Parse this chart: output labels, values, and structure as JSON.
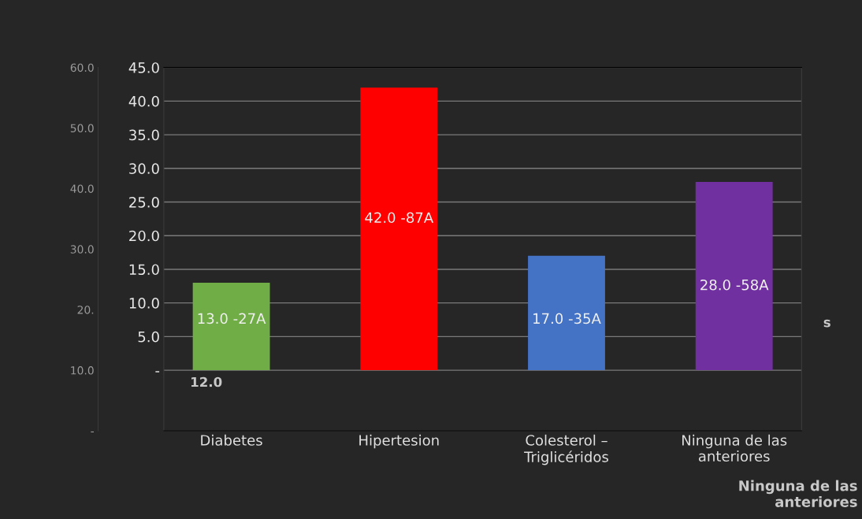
{
  "chart_data": {
    "type": "bar",
    "categories": [
      "Diabetes",
      "Hipertesion",
      "Colesterol –\nTriglicéridos",
      "Ninguna de las\nanteriores"
    ],
    "values": [
      13.0,
      42.0,
      17.0,
      28.0
    ],
    "colors": [
      "#70ad47",
      "#ff0000",
      "#4472c4",
      "#7030a0"
    ],
    "value_labels": [
      "13.0 -27A",
      "42.0 -87A",
      "17.0 -35A",
      "28.0 -58A"
    ],
    "ylim": [
      -9,
      45
    ],
    "yticks": [
      {
        "value": 0,
        "label": "-"
      },
      {
        "value": 5,
        "label": "5.0"
      },
      {
        "value": 10,
        "label": "10.0"
      },
      {
        "value": 15,
        "label": "15.0"
      },
      {
        "value": 20,
        "label": "20.0"
      },
      {
        "value": 25,
        "label": "25.0"
      },
      {
        "value": 30,
        "label": "30.0"
      },
      {
        "value": 35,
        "label": "35.0"
      },
      {
        "value": 40,
        "label": "40.0"
      },
      {
        "value": 45,
        "label": "45.0"
      }
    ],
    "y2lim": [
      0,
      60
    ],
    "y2ticks": [
      {
        "value": 0,
        "label": "-"
      },
      {
        "value": 10,
        "label": "10.0"
      },
      {
        "value": 20,
        "label": "20."
      },
      {
        "value": 30,
        "label": "30.0"
      },
      {
        "value": 40,
        "label": "40.0"
      },
      {
        "value": 50,
        "label": "50.0"
      },
      {
        "value": 60,
        "label": "60.0"
      }
    ],
    "grid": "y",
    "annotations": [
      "12.0",
      "s",
      "Ninguna de las\nanteriores"
    ]
  }
}
